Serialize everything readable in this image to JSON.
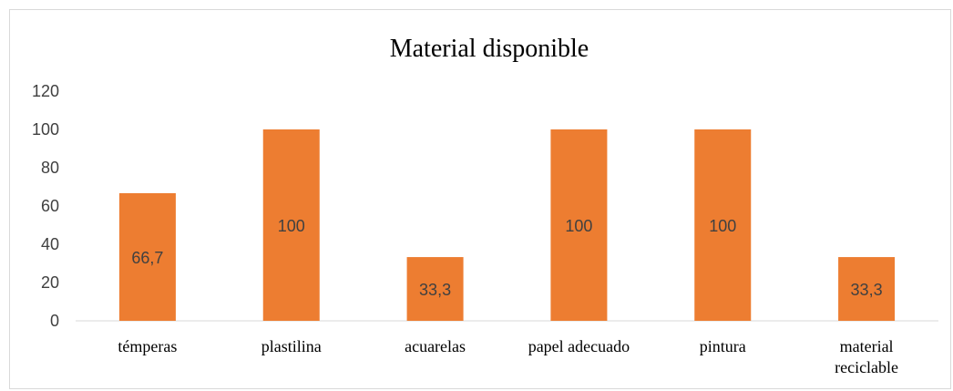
{
  "chart_data": {
    "type": "bar",
    "title": "Material disponible",
    "categories": [
      [
        "témperas"
      ],
      [
        "plastilina"
      ],
      [
        "acuarelas"
      ],
      [
        "papel adecuado"
      ],
      [
        "pintura"
      ],
      [
        "material",
        "reciclable"
      ]
    ],
    "values": [
      66.7,
      100,
      33.3,
      100,
      100,
      33.3
    ],
    "data_labels": [
      "66,7",
      "100",
      "33,3",
      "100",
      "100",
      "33,3"
    ],
    "yticks": [
      "0",
      "20",
      "40",
      "60",
      "80",
      "100",
      "120"
    ],
    "ylim": [
      0,
      120
    ],
    "xlabel": "",
    "ylabel": "",
    "grid": false,
    "bar_color": "#ED7D31",
    "axis_color": "#d9d9d9"
  }
}
